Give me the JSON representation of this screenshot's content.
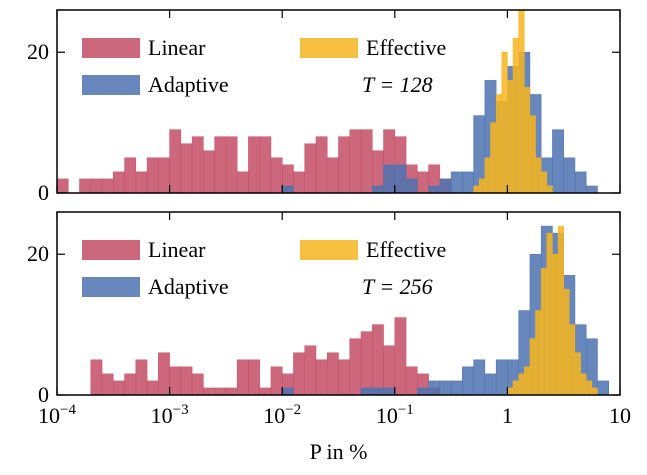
{
  "chart_data": [
    {
      "type": "histogram",
      "xlim": [
        0.0001,
        10
      ],
      "xscale": "log",
      "ylim": [
        0,
        26
      ],
      "yticks": [
        0,
        20
      ],
      "annotation": "T = 128",
      "series": [
        {
          "name": "Linear",
          "color": "#c44e65",
          "bins": [
            0.0001,
            0.0001259,
            0.0001585,
            0.0001995,
            0.0002512,
            0.0003162,
            0.0003981,
            0.0005012,
            0.000631,
            0.0007943,
            0.001,
            0.001259,
            0.001585,
            0.001995,
            0.002512,
            0.003162,
            0.003981,
            0.005012,
            0.00631,
            0.007943,
            0.01,
            0.01259,
            0.01585,
            0.01995,
            0.02512,
            0.03162,
            0.03981,
            0.05012,
            0.0631,
            0.07943,
            0.1,
            0.1259,
            0.1585,
            0.1995,
            0.2512,
            0.3162
          ],
          "values": [
            2,
            0,
            2,
            2,
            2,
            3,
            5,
            3,
            5,
            5,
            9,
            7,
            8,
            6,
            8,
            8,
            3,
            8,
            8,
            5,
            4,
            3,
            7,
            8,
            5,
            8,
            9,
            9,
            6,
            9,
            8,
            4,
            3,
            4,
            2
          ]
        },
        {
          "name": "Adaptive",
          "color": "#4c72b0",
          "bins": [
            0.01,
            0.01259,
            0.01585,
            0.01995,
            0.02512,
            0.03162,
            0.03981,
            0.05012,
            0.0631,
            0.07943,
            0.1,
            0.1259,
            0.1585,
            0.1995,
            0.2512,
            0.3162,
            0.3981,
            0.5012,
            0.631,
            0.7943,
            1,
            1.259,
            1.585,
            1.995,
            2.512,
            3.162,
            3.981,
            5.012,
            6.31
          ],
          "values": [
            1,
            0,
            0,
            0,
            0,
            0,
            0,
            0,
            1,
            4,
            4,
            2,
            0,
            1,
            2,
            3,
            3,
            11,
            16,
            13,
            18,
            20,
            14,
            5,
            9,
            5,
            3,
            1
          ]
        },
        {
          "name": "Effective",
          "color": "#f7b51f",
          "bins": [
            0.5012,
            0.5623,
            0.631,
            0.7079,
            0.7943,
            0.8913,
            1,
            1.122,
            1.259,
            1.413,
            1.585,
            1.778,
            1.995,
            2.239,
            2.512
          ],
          "values": [
            1,
            2,
            5,
            10,
            14,
            20,
            16,
            22,
            26,
            15,
            11,
            5,
            3,
            1
          ]
        }
      ]
    },
    {
      "type": "histogram",
      "xlim": [
        0.0001,
        10
      ],
      "xscale": "log",
      "ylim": [
        0,
        26
      ],
      "yticks": [
        0,
        20
      ],
      "annotation": "T = 256",
      "xlabel": "P in %",
      "xticks": [
        {
          "value": 0.0001,
          "label": "10",
          "sup": "−4"
        },
        {
          "value": 0.001,
          "label": "10",
          "sup": "−3"
        },
        {
          "value": 0.01,
          "label": "10",
          "sup": "−2"
        },
        {
          "value": 0.1,
          "label": "10",
          "sup": "−1"
        },
        1,
        10
      ],
      "series": [
        {
          "name": "Linear",
          "color": "#c44e65",
          "bins": [
            0.0001995,
            0.0002512,
            0.0003162,
            0.0003981,
            0.0005012,
            0.000631,
            0.0007943,
            0.001,
            0.001259,
            0.001585,
            0.001995,
            0.002512,
            0.003162,
            0.003981,
            0.005012,
            0.00631,
            0.007943,
            0.01,
            0.01259,
            0.01585,
            0.01995,
            0.02512,
            0.03162,
            0.03981,
            0.05012,
            0.0631,
            0.07943,
            0.1,
            0.1259,
            0.1585,
            0.1995,
            0.2512
          ],
          "values": [
            5,
            3,
            2,
            3,
            5,
            2,
            6,
            4,
            4,
            3,
            1,
            1,
            1,
            5,
            5,
            1,
            4,
            3,
            6,
            7,
            5,
            6,
            5,
            8,
            9,
            10,
            7,
            11,
            4,
            3,
            1
          ]
        },
        {
          "name": "Adaptive",
          "color": "#4c72b0",
          "bins": [
            0.01,
            0.01259,
            0.01585,
            0.01995,
            0.02512,
            0.03162,
            0.03981,
            0.05012,
            0.0631,
            0.07943,
            0.1,
            0.1259,
            0.1585,
            0.1995,
            0.2512,
            0.3162,
            0.3981,
            0.5012,
            0.631,
            0.7943,
            1,
            1.259,
            1.585,
            1.995,
            2.512,
            3.162,
            3.981,
            5.012,
            6.31,
            7.943
          ],
          "values": [
            1,
            0,
            0,
            0,
            0,
            0,
            0,
            1,
            1,
            1,
            0,
            0,
            1,
            2,
            2,
            2,
            4,
            5,
            3,
            5,
            5,
            12,
            20,
            24,
            23,
            17,
            10,
            8,
            2
          ]
        },
        {
          "name": "Effective",
          "color": "#f7b51f",
          "bins": [
            1,
            1.122,
            1.259,
            1.413,
            1.585,
            1.778,
            1.995,
            2.239,
            2.512,
            2.818,
            3.162,
            3.548,
            3.981,
            4.467,
            5.012,
            5.623,
            6.31
          ],
          "values": [
            1,
            2,
            3,
            4,
            8,
            12,
            18,
            23,
            20,
            24,
            15,
            10,
            6,
            3,
            2,
            1
          ]
        }
      ]
    }
  ]
}
